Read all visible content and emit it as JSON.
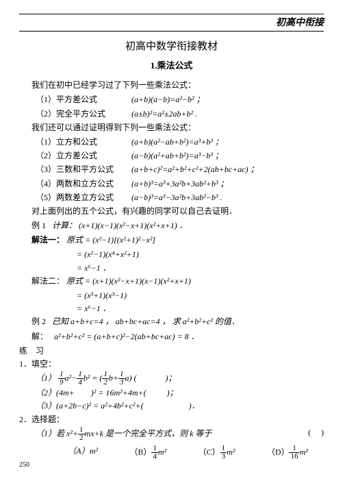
{
  "header": {
    "chapter": "初高中衔接"
  },
  "subtitle": "初高中数学衔接教材",
  "section_title": "1.乘法公式",
  "intro1": "我们在初中已经学习过了下列一些乘法公式：",
  "rows1": [
    {
      "lab": "（1）平方差公式",
      "form": "(a+b)(a−b)=a²−b² ；"
    },
    {
      "lab": "（2）完全平方公式",
      "form": "(a±b)²=a²±2ab+b² ."
    }
  ],
  "intro2": "我们还可以通过证明得到下列一些乘法公式：",
  "rows2": [
    {
      "lab": "（1）立方和公式",
      "form": "(a+b)(a²−ab+b²)=a³+b³ ；"
    },
    {
      "lab": "（2）立方差公式",
      "form": "(a−b)(a²+ab+b²)=a³−b³ ；"
    },
    {
      "lab": "（3）三数和平方公式",
      "form": "(a+b+c)²=a²+b²+c²+2(ab+bc+ac) ；"
    },
    {
      "lab": "（4）两数和立方公式",
      "form": "(a+b)³=a³+3a²b+3ab²+b³ ；"
    },
    {
      "lab": "（5）两数差立方公式",
      "form": "(a−b)³=a³−3a²b+3ab²−b³ ."
    }
  ],
  "note": "对上面列出的五个公式，有兴趣的同学可以自己去证明．",
  "ex1_label": "例 1",
  "ex1_text": "计算： (x+1)(x−1)(x²−x+1)(x²+x+1) ．",
  "sol1_label": "解法一：",
  "sol1_line1": "原式 = (x²−1)[(x²+1)²−x²]",
  "sol1_line2": "= (x²−1)(x⁴+x²+1)",
  "sol1_line3": "= x⁶−1 ．",
  "sol2_label": "解法二：",
  "sol2_line1": "原式 = (x+1)(x²−x+1)(x−1)(x²+x+1)",
  "sol2_line2": "= (x³+1)(x³−1)",
  "sol2_line3": "= x⁶−1 ．",
  "ex2_label": "例 2",
  "ex2_text": "已知 a+b+c=4 ， ab+bc+ac=4 ， 求 a²+b²+c² 的值．",
  "ex2_sol_label": "解：",
  "ex2_sol": "a²+b²+c² = (a+b+c)²−2(ab+bc+ac) = 8 ．",
  "practice": "练　习",
  "fill_label": "1．填空：",
  "fill1_pre": "（1）",
  "fill1_post": "(              )；",
  "fill2": "（2）(4m+        )² = 16m²+4m+(          )；",
  "fill3": "（3）(a+2b−c)² = a²+4b²+c²+(                      )．",
  "choice_label": "2．选择题：",
  "choice1_pre": "（1）若 x²+",
  "choice1_post": "mx+k 是一个完全平方式，则 k 等于",
  "choice1_paren": "(     )",
  "optA": "（A）m²",
  "optB_pre": "（B）",
  "optC_pre": "（C）",
  "optD_pre": "（D）",
  "page_num": "250"
}
